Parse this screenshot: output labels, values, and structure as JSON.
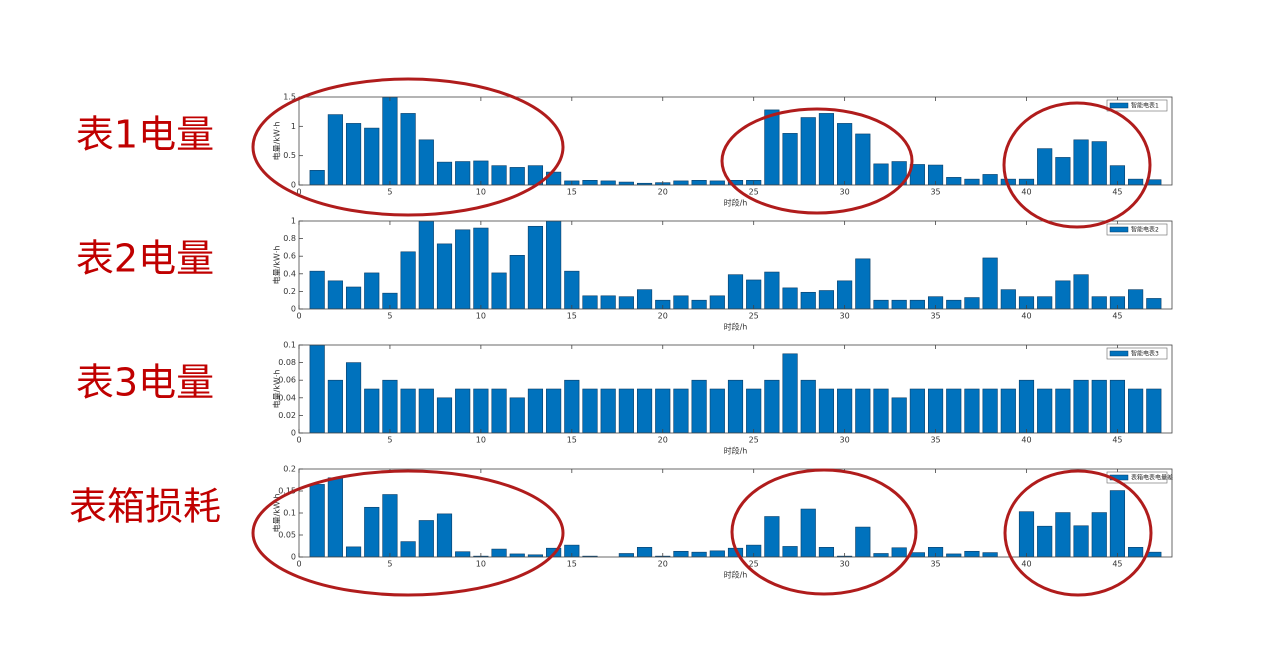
{
  "chart_data": [
    {
      "type": "bar",
      "title": "表1电量",
      "xlabel": "时段/h",
      "ylabel": "电量/kW·h",
      "x": [
        1,
        2,
        3,
        4,
        5,
        6,
        7,
        8,
        9,
        10,
        11,
        12,
        13,
        14,
        15,
        16,
        17,
        18,
        19,
        20,
        21,
        22,
        23,
        24,
        25,
        26,
        27,
        28,
        29,
        30,
        31,
        32,
        33,
        34,
        35,
        36,
        37,
        38,
        39,
        40,
        41,
        42,
        43,
        44,
        45,
        46,
        47
      ],
      "series": [
        {
          "name": "智能电表1",
          "color": "#0072bd",
          "values": [
            0.25,
            1.2,
            1.05,
            0.97,
            1.5,
            1.22,
            0.77,
            0.39,
            0.4,
            0.41,
            0.33,
            0.3,
            0.33,
            0.22,
            0.07,
            0.08,
            0.07,
            0.05,
            0.03,
            0.04,
            0.07,
            0.08,
            0.07,
            0.08,
            0.08,
            1.28,
            0.88,
            1.15,
            1.22,
            1.05,
            0.87,
            0.36,
            0.4,
            0.35,
            0.34,
            0.13,
            0.1,
            0.18,
            0.1,
            0.1,
            0.62,
            0.47,
            0.77,
            0.74,
            0.33,
            0.1,
            0.09
          ]
        }
      ],
      "xlim": [
        0,
        48
      ],
      "xticks": [
        0,
        5,
        10,
        15,
        20,
        25,
        30,
        35,
        40,
        45
      ],
      "ylim": [
        0,
        1.5
      ],
      "yticks": [
        0,
        0.5,
        1,
        1.5
      ],
      "legend": "upper right"
    },
    {
      "type": "bar",
      "title": "表2电量",
      "xlabel": "时段/h",
      "ylabel": "电量/kW·h",
      "x": [
        1,
        2,
        3,
        4,
        5,
        6,
        7,
        8,
        9,
        10,
        11,
        12,
        13,
        14,
        15,
        16,
        17,
        18,
        19,
        20,
        21,
        22,
        23,
        24,
        25,
        26,
        27,
        28,
        29,
        30,
        31,
        32,
        33,
        34,
        35,
        36,
        37,
        38,
        39,
        40,
        41,
        42,
        43,
        44,
        45,
        46,
        47
      ],
      "series": [
        {
          "name": "智能电表2",
          "color": "#0072bd",
          "values": [
            0.43,
            0.32,
            0.25,
            0.41,
            0.18,
            0.65,
            1.0,
            0.74,
            0.9,
            0.92,
            0.41,
            0.61,
            0.94,
            1.0,
            0.43,
            0.15,
            0.15,
            0.14,
            0.22,
            0.1,
            0.15,
            0.1,
            0.15,
            0.39,
            0.33,
            0.42,
            0.24,
            0.19,
            0.21,
            0.32,
            0.57,
            0.1,
            0.1,
            0.1,
            0.14,
            0.1,
            0.13,
            0.58,
            0.22,
            0.14,
            0.14,
            0.32,
            0.39,
            0.14,
            0.14,
            0.22,
            0.12
          ]
        }
      ],
      "xlim": [
        0,
        48
      ],
      "xticks": [
        0,
        5,
        10,
        15,
        20,
        25,
        30,
        35,
        40,
        45
      ],
      "ylim": [
        0,
        1
      ],
      "yticks": [
        0,
        0.2,
        0.4,
        0.6,
        0.8,
        1
      ],
      "legend": "upper right"
    },
    {
      "type": "bar",
      "title": "表3电量",
      "xlabel": "时段/h",
      "ylabel": "电量/kW·h",
      "x": [
        1,
        2,
        3,
        4,
        5,
        6,
        7,
        8,
        9,
        10,
        11,
        12,
        13,
        14,
        15,
        16,
        17,
        18,
        19,
        20,
        21,
        22,
        23,
        24,
        25,
        26,
        27,
        28,
        29,
        30,
        31,
        32,
        33,
        34,
        35,
        36,
        37,
        38,
        39,
        40,
        41,
        42,
        43,
        44,
        45,
        46,
        47
      ],
      "series": [
        {
          "name": "智能电表3",
          "color": "#0072bd",
          "values": [
            0.1,
            0.06,
            0.08,
            0.05,
            0.06,
            0.05,
            0.05,
            0.04,
            0.05,
            0.05,
            0.05,
            0.04,
            0.05,
            0.05,
            0.06,
            0.05,
            0.05,
            0.05,
            0.05,
            0.05,
            0.05,
            0.06,
            0.05,
            0.06,
            0.05,
            0.06,
            0.09,
            0.06,
            0.05,
            0.05,
            0.05,
            0.05,
            0.04,
            0.05,
            0.05,
            0.05,
            0.05,
            0.05,
            0.05,
            0.06,
            0.05,
            0.05,
            0.06,
            0.06,
            0.06,
            0.05,
            0.05
          ]
        }
      ],
      "xlim": [
        0,
        48
      ],
      "xticks": [
        0,
        5,
        10,
        15,
        20,
        25,
        30,
        35,
        40,
        45
      ],
      "ylim": [
        0,
        0.1
      ],
      "yticks": [
        0,
        0.02,
        0.04,
        0.06,
        0.08,
        0.1
      ],
      "legend": "upper right"
    },
    {
      "type": "bar",
      "title": "表箱损耗",
      "xlabel": "时段/h",
      "ylabel": "电量/kW·h",
      "x": [
        1,
        2,
        3,
        4,
        5,
        6,
        7,
        8,
        9,
        10,
        11,
        12,
        13,
        14,
        15,
        16,
        17,
        18,
        19,
        20,
        21,
        22,
        23,
        24,
        25,
        26,
        27,
        28,
        29,
        30,
        31,
        32,
        33,
        34,
        35,
        36,
        37,
        38,
        39,
        40,
        41,
        42,
        43,
        44,
        45,
        46,
        47
      ],
      "series": [
        {
          "name": "表箱电表电量差",
          "color": "#0072bd",
          "values": [
            0.165,
            0.18,
            0.023,
            0.113,
            0.142,
            0.035,
            0.083,
            0.098,
            0.012,
            0.002,
            0.018,
            0.007,
            0.005,
            0.02,
            0.027,
            0.002,
            0,
            0.008,
            0.022,
            0.002,
            0.013,
            0.011,
            0.014,
            0.02,
            0.027,
            0.092,
            0.024,
            0.109,
            0.022,
            0.002,
            0.068,
            0.008,
            0.021,
            0.01,
            0.022,
            0.007,
            0.013,
            0.01,
            0,
            0.103,
            0.07,
            0.101,
            0.071,
            0.101,
            0.151,
            0.022,
            0.011
          ]
        }
      ],
      "xlim": [
        0,
        48
      ],
      "xticks": [
        0,
        5,
        10,
        15,
        20,
        25,
        30,
        35,
        40,
        45
      ],
      "ylim": [
        0,
        0.2
      ],
      "yticks": [
        0,
        0.05,
        0.1,
        0.15,
        0.2
      ],
      "legend": "upper right"
    }
  ]
}
